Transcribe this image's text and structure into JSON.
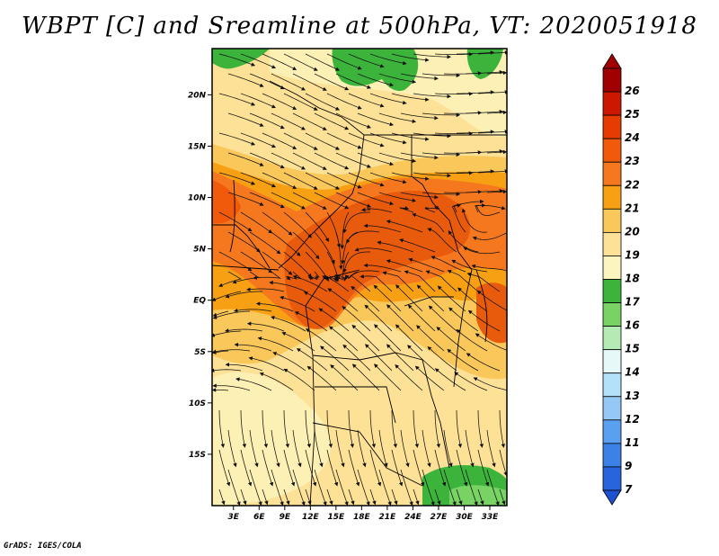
{
  "title": "WBPT [C] and Sreamline at 500hPa, VT: 2020051918",
  "credit": "GrADS: IGES/COLA",
  "map": {
    "lat_labels": [
      {
        "label": "20N",
        "value": 20
      },
      {
        "label": "15N",
        "value": 15
      },
      {
        "label": "10N",
        "value": 10
      },
      {
        "label": "5N",
        "value": 5
      },
      {
        "label": "EQ",
        "value": 0
      },
      {
        "label": "5S",
        "value": -5
      },
      {
        "label": "10S",
        "value": -10
      },
      {
        "label": "15S",
        "value": -15
      }
    ],
    "lon_labels": [
      {
        "label": "3E",
        "value": 3
      },
      {
        "label": "6E",
        "value": 6
      },
      {
        "label": "9E",
        "value": 9
      },
      {
        "label": "12E",
        "value": 12
      },
      {
        "label": "15E",
        "value": 15
      },
      {
        "label": "18E",
        "value": 18
      },
      {
        "label": "21E",
        "value": 21
      },
      {
        "label": "24E",
        "value": 24
      },
      {
        "label": "27E",
        "value": 27
      },
      {
        "label": "30E",
        "value": 30
      },
      {
        "label": "33E",
        "value": 33
      }
    ],
    "lon_range": [
      0.5,
      35
    ],
    "lat_range": [
      -20,
      24.5
    ]
  },
  "colorbar": {
    "levels": [
      {
        "label": "26",
        "color": "#a00000"
      },
      {
        "label": "25",
        "color": "#cc1800"
      },
      {
        "label": "24",
        "color": "#e63c00"
      },
      {
        "label": "23",
        "color": "#f05a0a"
      },
      {
        "label": "22",
        "color": "#f5781e"
      },
      {
        "label": "21",
        "color": "#f7a014"
      },
      {
        "label": "20",
        "color": "#fac85a"
      },
      {
        "label": "19",
        "color": "#fce196"
      },
      {
        "label": "18",
        "color": "#fdf5c0"
      },
      {
        "label": "17",
        "color": "#3cb43c"
      },
      {
        "label": "16",
        "color": "#78d264"
      },
      {
        "label": "15",
        "color": "#b4ebb4"
      },
      {
        "label": "14",
        "color": "#e6f8f8"
      },
      {
        "label": "13",
        "color": "#b4e1fa"
      },
      {
        "label": "12",
        "color": "#96c8f5"
      },
      {
        "label": "11",
        "color": "#5aa0f0"
      },
      {
        "label": "9",
        "color": "#3c82e6"
      },
      {
        "label": "7",
        "color": "#2864dc"
      }
    ],
    "under_color": "#1e50d2"
  }
}
